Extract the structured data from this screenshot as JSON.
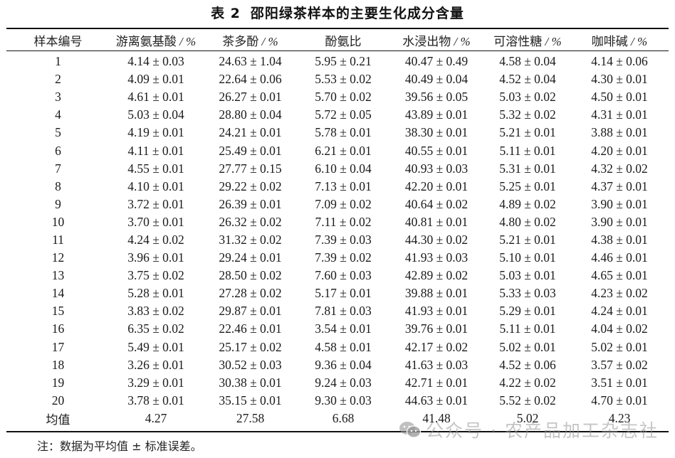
{
  "caption": {
    "number": "表 2",
    "title": "邵阳绿茶样本的主要生化成分含量"
  },
  "table": {
    "headers": [
      {
        "label": "样本编号",
        "unit": ""
      },
      {
        "label": "游离氨基酸",
        "unit": " / %"
      },
      {
        "label": "茶多酚",
        "unit": " / %"
      },
      {
        "label": "酚氨比",
        "unit": ""
      },
      {
        "label": "水浸出物",
        "unit": " / %"
      },
      {
        "label": "可溶性糖",
        "unit": " / %"
      },
      {
        "label": "咖啡碱",
        "unit": " / %"
      }
    ],
    "rows": [
      [
        "1",
        "4.14 ± 0.03",
        "24.63 ± 1.04",
        "5.95 ± 0.21",
        "40.47 ± 0.49",
        "4.58 ± 0.04",
        "4.14 ± 0.06"
      ],
      [
        "2",
        "4.09 ± 0.01",
        "22.64 ± 0.06",
        "5.53 ± 0.02",
        "40.49 ± 0.04",
        "4.52 ± 0.04",
        "4.30 ± 0.01"
      ],
      [
        "3",
        "4.61 ± 0.01",
        "26.27 ± 0.01",
        "5.70 ± 0.02",
        "39.56 ± 0.05",
        "5.03 ± 0.02",
        "4.50 ± 0.01"
      ],
      [
        "4",
        "5.03 ± 0.04",
        "28.80 ± 0.04",
        "5.72 ± 0.05",
        "43.89 ± 0.01",
        "5.32 ± 0.02",
        "4.31 ± 0.01"
      ],
      [
        "5",
        "4.19 ± 0.01",
        "24.21 ± 0.01",
        "5.78 ± 0.01",
        "38.30 ± 0.01",
        "5.21 ± 0.01",
        "3.88 ± 0.01"
      ],
      [
        "6",
        "4.11 ± 0.01",
        "25.49 ± 0.01",
        "6.21 ± 0.01",
        "40.55 ± 0.01",
        "5.11 ± 0.01",
        "4.20 ± 0.01"
      ],
      [
        "7",
        "4.55 ± 0.01",
        "27.77 ± 0.15",
        "6.10 ± 0.04",
        "40.93 ± 0.03",
        "5.31 ± 0.01",
        "4.32 ± 0.02"
      ],
      [
        "8",
        "4.10 ± 0.01",
        "29.22 ± 0.02",
        "7.13 ± 0.01",
        "42.20 ± 0.01",
        "5.25 ± 0.01",
        "4.37 ± 0.01"
      ],
      [
        "9",
        "3.72 ± 0.01",
        "26.39 ± 0.01",
        "7.09 ± 0.02",
        "40.64 ± 0.02",
        "4.89 ± 0.02",
        "3.90 ± 0.01"
      ],
      [
        "10",
        "3.70 ± 0.01",
        "26.32 ± 0.02",
        "7.11 ± 0.02",
        "40.81 ± 0.01",
        "4.80 ± 0.02",
        "3.90 ± 0.01"
      ],
      [
        "11",
        "4.24 ± 0.02",
        "31.32 ± 0.02",
        "7.39 ± 0.03",
        "44.30 ± 0.02",
        "5.21 ± 0.01",
        "4.38 ± 0.01"
      ],
      [
        "12",
        "3.96 ± 0.01",
        "29.24 ± 0.01",
        "7.39 ± 0.02",
        "41.93 ± 0.03",
        "5.10 ± 0.01",
        "4.46 ± 0.01"
      ],
      [
        "13",
        "3.75 ± 0.02",
        "28.50 ± 0.02",
        "7.60 ± 0.03",
        "42.89 ± 0.02",
        "5.03 ± 0.01",
        "4.65 ± 0.01"
      ],
      [
        "14",
        "5.28 ± 0.01",
        "27.28 ± 0.02",
        "5.17 ± 0.01",
        "39.88 ± 0.01",
        "5.33 ± 0.03",
        "4.23 ± 0.02"
      ],
      [
        "15",
        "3.83 ± 0.02",
        "29.87 ± 0.01",
        "7.81 ± 0.03",
        "41.93 ± 0.01",
        "5.29 ± 0.01",
        "4.24 ± 0.01"
      ],
      [
        "16",
        "6.35 ± 0.02",
        "22.46 ± 0.01",
        "3.54 ± 0.01",
        "39.76 ± 0.01",
        "5.11 ± 0.01",
        "4.04 ± 0.02"
      ],
      [
        "17",
        "5.49 ± 0.01",
        "25.17 ± 0.02",
        "4.58 ± 0.01",
        "42.17 ± 0.02",
        "5.02 ± 0.01",
        "5.02 ± 0.01"
      ],
      [
        "18",
        "3.26 ± 0.01",
        "30.52 ± 0.03",
        "9.36 ± 0.04",
        "41.63 ± 0.03",
        "4.52 ± 0.06",
        "3.57 ± 0.02"
      ],
      [
        "19",
        "3.29 ± 0.01",
        "30.38 ± 0.01",
        "9.24 ± 0.03",
        "42.71 ± 0.01",
        "4.22 ± 0.02",
        "3.51 ± 0.01"
      ],
      [
        "20",
        "3.78 ± 0.01",
        "35.15 ± 0.01",
        "9.30 ± 0.03",
        "44.63 ± 0.01",
        "5.52 ± 0.02",
        "4.70 ± 0.01"
      ]
    ],
    "mean_row": [
      "均值",
      "4.27",
      "27.58",
      "6.68",
      "41.48",
      "5.02",
      "4.23"
    ]
  },
  "note": "注：数据为平均值 ± 标准误差。",
  "watermark": {
    "icon": "wechat-icon",
    "text": "公众号 · 农产品加工杂志社"
  }
}
